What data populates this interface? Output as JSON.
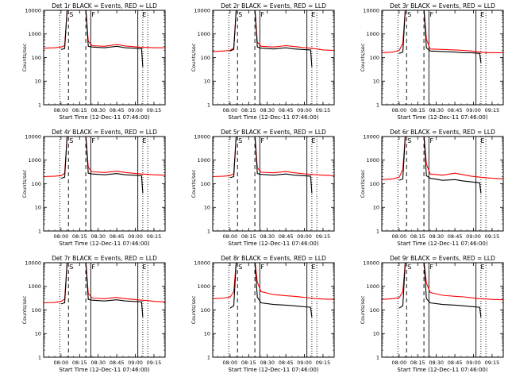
{
  "figure": {
    "xlabel": "Start Time (12-Dec-11 07:46:00)",
    "ylabel": "Counts/sec",
    "yticks": [
      "1",
      "10",
      "100",
      "1000",
      "10000"
    ],
    "xticks": [
      "08:00",
      "08:15",
      "08:30",
      "08:45",
      "09:00",
      "09:15"
    ],
    "colors": {
      "events": "#000000",
      "lld": "#ff0000"
    }
  },
  "chart_data": [
    {
      "type": "line",
      "title": "Det 1r  BLACK = Events, RED = LLD",
      "x_range": [
        "07:46",
        "09:24"
      ],
      "y_range": [
        1,
        10000
      ],
      "y_scale": "log",
      "markers": [
        {
          "label": "S",
          "time": "08:06"
        },
        {
          "label": "F",
          "time": "08:24"
        },
        {
          "label": "E",
          "time": "09:05"
        }
      ],
      "series": [
        {
          "name": "Events",
          "color": "#000000",
          "x": [
            "07:46",
            "07:59",
            "08:00",
            "08:03",
            "08:05",
            "08:20",
            "08:22",
            "08:25",
            "08:35",
            "08:45",
            "08:52",
            "08:58",
            "09:05",
            "09:06",
            "09:15",
            "09:24"
          ],
          "y": [
            null,
            null,
            220,
            240,
            12000,
            12000,
            300,
            280,
            260,
            300,
            260,
            250,
            240,
            40,
            null,
            null
          ]
        },
        {
          "name": "LLD",
          "color": "#ff0000",
          "x": [
            "07:46",
            "07:55",
            "08:00",
            "08:03",
            "08:05",
            "08:20",
            "08:22",
            "08:25",
            "08:35",
            "08:45",
            "08:52",
            "08:58",
            "09:05",
            "09:10",
            "09:15",
            "09:24"
          ],
          "y": [
            250,
            260,
            280,
            320,
            12000,
            12000,
            500,
            320,
            300,
            360,
            310,
            290,
            270,
            270,
            260,
            260
          ]
        }
      ]
    },
    {
      "type": "line",
      "title": "Det 2r  BLACK = Events, RED = LLD",
      "x_range": [
        "07:46",
        "09:24"
      ],
      "y_range": [
        1,
        10000
      ],
      "y_scale": "log",
      "markers": [
        {
          "label": "S",
          "time": "08:06"
        },
        {
          "label": "F",
          "time": "08:24"
        },
        {
          "label": "E",
          "time": "09:05"
        }
      ],
      "series": [
        {
          "name": "Events",
          "color": "#000000",
          "x": [
            "07:46",
            "07:55",
            "08:00",
            "08:03",
            "08:05",
            "08:20",
            "08:22",
            "08:25",
            "08:35",
            "08:45",
            "08:52",
            "08:58",
            "09:05",
            "09:06",
            "09:15",
            "09:24"
          ],
          "y": [
            null,
            null,
            190,
            220,
            12000,
            12000,
            280,
            250,
            230,
            260,
            230,
            220,
            210,
            40,
            null,
            null
          ]
        },
        {
          "name": "LLD",
          "color": "#ff0000",
          "x": [
            "07:46",
            "07:55",
            "08:00",
            "08:03",
            "08:05",
            "08:20",
            "08:22",
            "08:25",
            "08:35",
            "08:45",
            "08:52",
            "08:58",
            "09:05",
            "09:10",
            "09:15",
            "09:24"
          ],
          "y": [
            180,
            190,
            200,
            260,
            12000,
            12000,
            450,
            300,
            280,
            320,
            290,
            270,
            250,
            230,
            210,
            200
          ]
        }
      ]
    },
    {
      "type": "line",
      "title": "Det 3r  BLACK = Events, RED = LLD",
      "x_range": [
        "07:46",
        "09:24"
      ],
      "y_range": [
        1,
        10000
      ],
      "y_scale": "log",
      "markers": [
        {
          "label": "S",
          "time": "08:06"
        },
        {
          "label": "F",
          "time": "08:24"
        },
        {
          "label": "E",
          "time": "09:05"
        }
      ],
      "series": [
        {
          "name": "Events",
          "color": "#000000",
          "x": [
            "07:46",
            "07:55",
            "08:00",
            "08:03",
            "08:05",
            "08:20",
            "08:22",
            "08:25",
            "08:35",
            "08:45",
            "08:52",
            "08:58",
            "09:05",
            "09:06",
            "09:15",
            "09:24"
          ],
          "y": [
            null,
            null,
            150,
            170,
            12000,
            12000,
            260,
            190,
            180,
            170,
            160,
            160,
            150,
            60,
            null,
            null
          ]
        },
        {
          "name": "LLD",
          "color": "#ff0000",
          "x": [
            "07:46",
            "07:55",
            "08:00",
            "08:03",
            "08:05",
            "08:20",
            "08:22",
            "08:25",
            "08:35",
            "08:45",
            "08:52",
            "08:58",
            "09:05",
            "09:10",
            "09:15",
            "09:24"
          ],
          "y": [
            160,
            170,
            200,
            400,
            12000,
            12000,
            600,
            230,
            220,
            210,
            200,
            190,
            170,
            160,
            160,
            160
          ]
        }
      ]
    },
    {
      "type": "line",
      "title": "Det 4r  BLACK = Events, RED = LLD",
      "x_range": [
        "07:46",
        "09:24"
      ],
      "y_range": [
        1,
        10000
      ],
      "y_scale": "log",
      "markers": [
        {
          "label": "S",
          "time": "08:06"
        },
        {
          "label": "F",
          "time": "08:24"
        },
        {
          "label": "E",
          "time": "09:05"
        }
      ],
      "series": [
        {
          "name": "Events",
          "color": "#000000",
          "x": [
            "07:46",
            "07:55",
            "08:00",
            "08:03",
            "08:05",
            "08:20",
            "08:22",
            "08:25",
            "08:35",
            "08:45",
            "08:52",
            "08:58",
            "09:05",
            "09:06",
            "09:15",
            "09:24"
          ],
          "y": [
            null,
            null,
            170,
            190,
            12000,
            12000,
            280,
            260,
            240,
            270,
            240,
            230,
            220,
            40,
            null,
            null
          ]
        },
        {
          "name": "LLD",
          "color": "#ff0000",
          "x": [
            "07:46",
            "07:55",
            "08:00",
            "08:03",
            "08:05",
            "08:20",
            "08:22",
            "08:25",
            "08:35",
            "08:45",
            "08:52",
            "08:58",
            "09:05",
            "09:10",
            "09:15",
            "09:24"
          ],
          "y": [
            200,
            210,
            220,
            280,
            12000,
            12000,
            500,
            320,
            300,
            340,
            300,
            280,
            260,
            250,
            240,
            230
          ]
        }
      ]
    },
    {
      "type": "line",
      "title": "Det 5r  BLACK = Events, RED = LLD",
      "x_range": [
        "07:46",
        "09:24"
      ],
      "y_range": [
        1,
        10000
      ],
      "y_scale": "log",
      "markers": [
        {
          "label": "S",
          "time": "08:06"
        },
        {
          "label": "F",
          "time": "08:24"
        },
        {
          "label": "E",
          "time": "09:05"
        }
      ],
      "series": [
        {
          "name": "Events",
          "color": "#000000",
          "x": [
            "07:46",
            "07:55",
            "08:00",
            "08:03",
            "08:05",
            "08:20",
            "08:22",
            "08:25",
            "08:35",
            "08:45",
            "08:52",
            "08:58",
            "09:05",
            "09:06",
            "09:15",
            "09:24"
          ],
          "y": [
            null,
            null,
            180,
            200,
            12000,
            12000,
            270,
            250,
            230,
            260,
            230,
            220,
            210,
            40,
            null,
            null
          ]
        },
        {
          "name": "LLD",
          "color": "#ff0000",
          "x": [
            "07:46",
            "07:55",
            "08:00",
            "08:03",
            "08:05",
            "08:20",
            "08:22",
            "08:25",
            "08:35",
            "08:45",
            "08:52",
            "08:58",
            "09:05",
            "09:10",
            "09:15",
            "09:24"
          ],
          "y": [
            200,
            210,
            220,
            270,
            12000,
            12000,
            480,
            310,
            290,
            330,
            290,
            270,
            250,
            240,
            230,
            220
          ]
        }
      ]
    },
    {
      "type": "line",
      "title": "Det 6r  BLACK = Events, RED = LLD",
      "x_range": [
        "07:46",
        "09:24"
      ],
      "y_range": [
        1,
        10000
      ],
      "y_scale": "log",
      "markers": [
        {
          "label": "S",
          "time": "08:06"
        },
        {
          "label": "F",
          "time": "08:24"
        },
        {
          "label": "E",
          "time": "09:05"
        }
      ],
      "series": [
        {
          "name": "Events",
          "color": "#000000",
          "x": [
            "07:46",
            "07:55",
            "08:00",
            "08:03",
            "08:05",
            "08:20",
            "08:22",
            "08:25",
            "08:35",
            "08:45",
            "08:52",
            "08:58",
            "09:05",
            "09:06",
            "09:15",
            "09:24"
          ],
          "y": [
            null,
            null,
            140,
            160,
            12000,
            12000,
            220,
            170,
            140,
            150,
            130,
            120,
            110,
            40,
            null,
            null
          ]
        },
        {
          "name": "LLD",
          "color": "#ff0000",
          "x": [
            "07:46",
            "07:55",
            "08:00",
            "08:03",
            "08:05",
            "08:20",
            "08:22",
            "08:25",
            "08:35",
            "08:45",
            "08:52",
            "08:58",
            "09:05",
            "09:10",
            "09:15",
            "09:24"
          ],
          "y": [
            150,
            160,
            190,
            400,
            12000,
            12000,
            700,
            260,
            230,
            280,
            240,
            210,
            190,
            180,
            170,
            160
          ]
        }
      ]
    },
    {
      "type": "line",
      "title": "Det 7r  BLACK = Events, RED = LLD",
      "x_range": [
        "07:46",
        "09:24"
      ],
      "y_range": [
        1,
        10000
      ],
      "y_scale": "log",
      "markers": [
        {
          "label": "S",
          "time": "08:06"
        },
        {
          "label": "F",
          "time": "08:24"
        },
        {
          "label": "E",
          "time": "09:05"
        }
      ],
      "series": [
        {
          "name": "Events",
          "color": "#000000",
          "x": [
            "07:46",
            "07:55",
            "08:00",
            "08:03",
            "08:05",
            "08:20",
            "08:22",
            "08:25",
            "08:35",
            "08:45",
            "08:52",
            "08:58",
            "09:05",
            "09:06",
            "09:15",
            "09:24"
          ],
          "y": [
            null,
            null,
            180,
            200,
            12000,
            12000,
            280,
            260,
            240,
            270,
            240,
            230,
            220,
            50,
            null,
            null
          ]
        },
        {
          "name": "LLD",
          "color": "#ff0000",
          "x": [
            "07:46",
            "07:55",
            "08:00",
            "08:03",
            "08:05",
            "08:20",
            "08:22",
            "08:25",
            "08:35",
            "08:45",
            "08:52",
            "08:58",
            "09:05",
            "09:10",
            "09:15",
            "09:24"
          ],
          "y": [
            200,
            210,
            230,
            290,
            12000,
            12000,
            500,
            320,
            300,
            340,
            300,
            280,
            260,
            250,
            230,
            220
          ]
        }
      ]
    },
    {
      "type": "line",
      "title": "Det 8r  BLACK = Events, RED = LLD",
      "x_range": [
        "07:46",
        "09:24"
      ],
      "y_range": [
        1,
        10000
      ],
      "y_scale": "log",
      "markers": [
        {
          "label": "S",
          "time": "08:06"
        },
        {
          "label": "F",
          "time": "08:24"
        },
        {
          "label": "E",
          "time": "09:05"
        }
      ],
      "series": [
        {
          "name": "Events",
          "color": "#000000",
          "x": [
            "07:46",
            "07:55",
            "08:00",
            "08:03",
            "08:05",
            "08:20",
            "08:22",
            "08:25",
            "08:35",
            "08:45",
            "08:52",
            "08:58",
            "09:05",
            "09:06",
            "09:15",
            "09:24"
          ],
          "y": [
            null,
            null,
            120,
            150,
            12000,
            12000,
            350,
            200,
            170,
            160,
            150,
            140,
            130,
            50,
            null,
            null
          ]
        },
        {
          "name": "LLD",
          "color": "#ff0000",
          "x": [
            "07:46",
            "07:55",
            "08:00",
            "08:03",
            "08:05",
            "08:20",
            "08:22",
            "08:25",
            "08:35",
            "08:45",
            "08:52",
            "08:58",
            "09:05",
            "09:10",
            "09:15",
            "09:24"
          ],
          "y": [
            300,
            320,
            350,
            600,
            12000,
            12000,
            1500,
            600,
            450,
            400,
            380,
            350,
            320,
            300,
            290,
            280
          ]
        }
      ]
    },
    {
      "type": "line",
      "title": "Det 9r  BLACK = Events, RED = LLD",
      "x_range": [
        "07:46",
        "09:24"
      ],
      "y_range": [
        1,
        10000
      ],
      "y_scale": "log",
      "markers": [
        {
          "label": "S",
          "time": "08:06"
        },
        {
          "label": "F",
          "time": "08:24"
        },
        {
          "label": "E",
          "time": "09:05"
        }
      ],
      "series": [
        {
          "name": "Events",
          "color": "#000000",
          "x": [
            "07:46",
            "07:55",
            "08:00",
            "08:03",
            "08:05",
            "08:20",
            "08:22",
            "08:25",
            "08:35",
            "08:45",
            "08:52",
            "08:58",
            "09:05",
            "09:06",
            "09:15",
            "09:24"
          ],
          "y": [
            null,
            null,
            120,
            150,
            12000,
            12000,
            300,
            200,
            170,
            160,
            150,
            140,
            130,
            50,
            null,
            null
          ]
        },
        {
          "name": "LLD",
          "color": "#ff0000",
          "x": [
            "07:46",
            "07:55",
            "08:00",
            "08:03",
            "08:05",
            "08:20",
            "08:22",
            "08:25",
            "08:35",
            "08:45",
            "08:52",
            "08:58",
            "09:05",
            "09:10",
            "09:15",
            "09:24"
          ],
          "y": [
            280,
            300,
            330,
            600,
            12000,
            12000,
            1400,
            550,
            420,
            380,
            360,
            330,
            300,
            290,
            280,
            270
          ]
        }
      ]
    }
  ]
}
